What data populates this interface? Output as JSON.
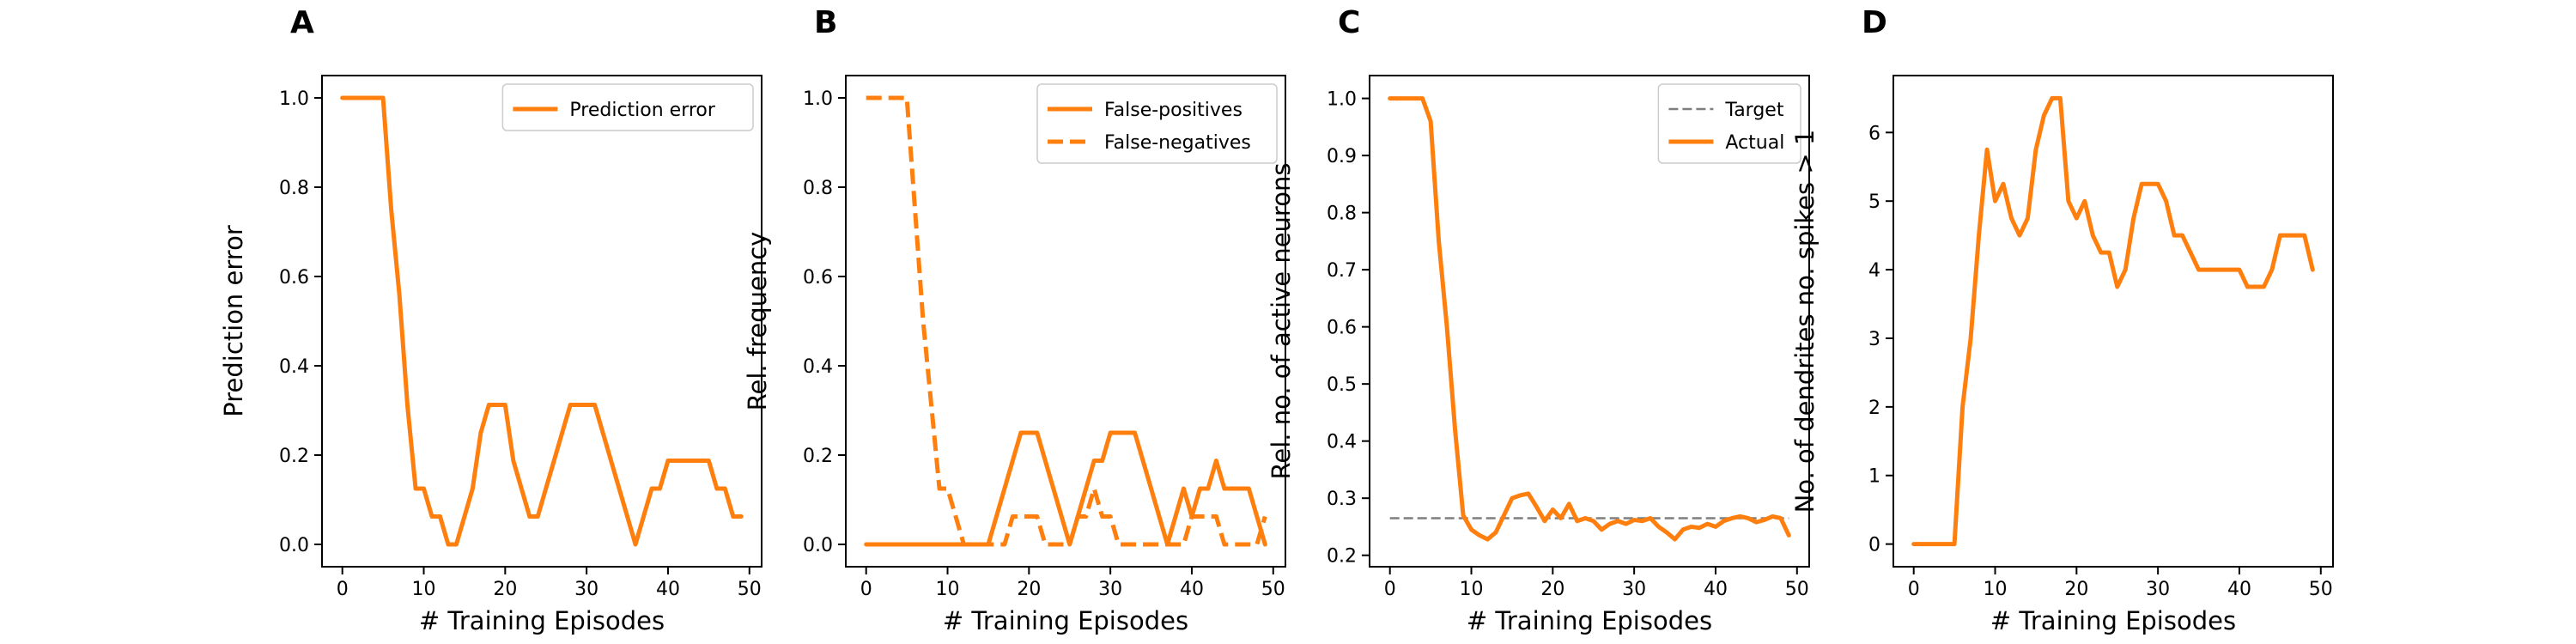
{
  "chart_data": [
    {
      "type": "line",
      "panel": "A",
      "xlabel": "# Training Episodes",
      "ylabel": "Prediction error",
      "xlim": [
        -2.5,
        51.5
      ],
      "ylim": [
        -0.05,
        1.05
      ],
      "xticks": [
        0,
        10,
        20,
        30,
        40,
        50
      ],
      "yticks": [
        0.0,
        0.2,
        0.4,
        0.6,
        0.8,
        1.0
      ],
      "ytick_decimals": 1,
      "legend_position": "upper-right",
      "series": [
        {
          "name": "Prediction error",
          "color": "#ff7f0e",
          "dash": "solid",
          "x": [
            0,
            1,
            2,
            3,
            4,
            5,
            6,
            7,
            8,
            9,
            10,
            11,
            12,
            13,
            14,
            15,
            16,
            17,
            18,
            19,
            20,
            21,
            22,
            23,
            24,
            25,
            26,
            27,
            28,
            29,
            30,
            31,
            32,
            33,
            34,
            35,
            36,
            37,
            38,
            39,
            40,
            41,
            42,
            43,
            44,
            45,
            46,
            47,
            48,
            49
          ],
          "y": [
            1.0,
            1.0,
            1.0,
            1.0,
            1.0,
            1.0,
            0.75,
            0.56,
            0.31,
            0.125,
            0.125,
            0.0625,
            0.0625,
            0.0,
            0.0,
            0.0625,
            0.125,
            0.25,
            0.3125,
            0.3125,
            0.3125,
            0.1875,
            0.125,
            0.0625,
            0.0625,
            0.125,
            0.1875,
            0.25,
            0.3125,
            0.3125,
            0.3125,
            0.3125,
            0.25,
            0.1875,
            0.125,
            0.0625,
            0.0,
            0.0625,
            0.125,
            0.125,
            0.1875,
            0.1875,
            0.1875,
            0.1875,
            0.1875,
            0.1875,
            0.125,
            0.125,
            0.0625,
            0.0625
          ]
        }
      ]
    },
    {
      "type": "line",
      "panel": "B",
      "xlabel": "# Training Episodes",
      "ylabel": "Rel. frequency",
      "xlim": [
        -2.5,
        51.5
      ],
      "ylim": [
        -0.05,
        1.05
      ],
      "xticks": [
        0,
        10,
        20,
        30,
        40,
        50
      ],
      "yticks": [
        0.0,
        0.2,
        0.4,
        0.6,
        0.8,
        1.0
      ],
      "ytick_decimals": 1,
      "legend_position": "upper-right",
      "series": [
        {
          "name": "False-positives",
          "color": "#ff7f0e",
          "dash": "solid",
          "x": [
            0,
            1,
            2,
            3,
            4,
            5,
            6,
            7,
            8,
            9,
            10,
            11,
            12,
            13,
            14,
            15,
            16,
            17,
            18,
            19,
            20,
            21,
            22,
            23,
            24,
            25,
            26,
            27,
            28,
            29,
            30,
            31,
            32,
            33,
            34,
            35,
            36,
            37,
            38,
            39,
            40,
            41,
            42,
            43,
            44,
            45,
            46,
            47,
            48,
            49
          ],
          "y": [
            0,
            0,
            0,
            0,
            0,
            0,
            0,
            0,
            0,
            0,
            0,
            0,
            0,
            0,
            0,
            0,
            0.0625,
            0.125,
            0.1875,
            0.25,
            0.25,
            0.25,
            0.1875,
            0.125,
            0.0625,
            0.0,
            0.0625,
            0.125,
            0.1875,
            0.1875,
            0.25,
            0.25,
            0.25,
            0.25,
            0.1875,
            0.125,
            0.0625,
            0.0,
            0.0625,
            0.125,
            0.0625,
            0.125,
            0.125,
            0.1875,
            0.125,
            0.125,
            0.125,
            0.125,
            0.0625,
            0.0
          ]
        },
        {
          "name": "False-negatives",
          "color": "#ff7f0e",
          "dash": "dashed",
          "x": [
            0,
            1,
            2,
            3,
            4,
            5,
            6,
            7,
            8,
            9,
            10,
            11,
            12,
            13,
            14,
            15,
            16,
            17,
            18,
            19,
            20,
            21,
            22,
            23,
            24,
            25,
            26,
            27,
            28,
            29,
            30,
            31,
            32,
            33,
            34,
            35,
            36,
            37,
            38,
            39,
            40,
            41,
            42,
            43,
            44,
            45,
            46,
            47,
            48,
            49
          ],
          "y": [
            1.0,
            1.0,
            1.0,
            1.0,
            1.0,
            1.0,
            0.75,
            0.5,
            0.3125,
            0.125,
            0.125,
            0.0625,
            0.0,
            0.0,
            0.0,
            0.0,
            0.0,
            0.0,
            0.0625,
            0.0625,
            0.0625,
            0.0625,
            0.0,
            0.0,
            0.0,
            0.0,
            0.0625,
            0.0625,
            0.125,
            0.0625,
            0.0625,
            0.0,
            0.0,
            0.0,
            0.0,
            0.0,
            0.0,
            0.0,
            0.0,
            0.0,
            0.0625,
            0.0625,
            0.0625,
            0.0625,
            0.0,
            0.0,
            0.0,
            0.0,
            0.0,
            0.0625
          ]
        }
      ]
    },
    {
      "type": "line",
      "panel": "C",
      "xlabel": "# Training Episodes",
      "ylabel": "Rel. no. of active neurons",
      "xlim": [
        -2.5,
        51.5
      ],
      "ylim": [
        0.18,
        1.04
      ],
      "xticks": [
        0,
        10,
        20,
        30,
        40,
        50
      ],
      "yticks": [
        0.2,
        0.3,
        0.4,
        0.5,
        0.6,
        0.7,
        0.8,
        0.9,
        1.0
      ],
      "ytick_decimals": 1,
      "legend_position": "upper-right",
      "series": [
        {
          "name": "Target",
          "color": "#7f7f7f",
          "dash": "dashed",
          "x": [
            0,
            49
          ],
          "y": [
            0.265,
            0.265
          ]
        },
        {
          "name": "Actual",
          "color": "#ff7f0e",
          "dash": "solid",
          "x": [
            0,
            1,
            2,
            3,
            4,
            5,
            6,
            7,
            8,
            9,
            10,
            11,
            12,
            13,
            14,
            15,
            16,
            17,
            18,
            19,
            20,
            21,
            22,
            23,
            24,
            25,
            26,
            27,
            28,
            29,
            30,
            31,
            32,
            33,
            34,
            35,
            36,
            37,
            38,
            39,
            40,
            41,
            42,
            43,
            44,
            45,
            46,
            47,
            48,
            49
          ],
          "y": [
            1.0,
            1.0,
            1.0,
            1.0,
            1.0,
            0.96,
            0.75,
            0.6,
            0.42,
            0.27,
            0.245,
            0.235,
            0.228,
            0.24,
            0.27,
            0.3,
            0.305,
            0.308,
            0.285,
            0.26,
            0.28,
            0.265,
            0.29,
            0.26,
            0.265,
            0.26,
            0.245,
            0.255,
            0.26,
            0.255,
            0.262,
            0.26,
            0.265,
            0.25,
            0.24,
            0.228,
            0.245,
            0.25,
            0.248,
            0.255,
            0.25,
            0.26,
            0.265,
            0.268,
            0.265,
            0.258,
            0.262,
            0.268,
            0.265,
            0.235
          ]
        }
      ]
    },
    {
      "type": "line",
      "panel": "D",
      "xlabel": "# Training Episodes",
      "ylabel": "No. of dendrites no. spikes > 1",
      "xlim": [
        -2.5,
        51.5
      ],
      "ylim": [
        -0.33,
        6.83
      ],
      "xticks": [
        0,
        10,
        20,
        30,
        40,
        50
      ],
      "yticks": [
        0,
        1,
        2,
        3,
        4,
        5,
        6
      ],
      "ytick_decimals": 0,
      "legend_position": "none",
      "series": [
        {
          "name": "",
          "color": "#ff7f0e",
          "dash": "solid",
          "x": [
            0,
            1,
            2,
            3,
            4,
            5,
            6,
            7,
            8,
            9,
            10,
            11,
            12,
            13,
            14,
            15,
            16,
            17,
            18,
            19,
            20,
            21,
            22,
            23,
            24,
            25,
            26,
            27,
            28,
            29,
            30,
            31,
            32,
            33,
            34,
            35,
            36,
            37,
            38,
            39,
            40,
            41,
            42,
            43,
            44,
            45,
            46,
            47,
            48,
            49
          ],
          "y": [
            0,
            0,
            0,
            0,
            0,
            0,
            2.0,
            3.0,
            4.5,
            5.75,
            5.0,
            5.25,
            4.75,
            4.5,
            4.75,
            5.75,
            6.25,
            6.5,
            6.5,
            5.0,
            4.75,
            5.0,
            4.5,
            4.25,
            4.25,
            3.75,
            4.0,
            4.75,
            5.25,
            5.25,
            5.25,
            5.0,
            4.5,
            4.5,
            4.25,
            4.0,
            4.0,
            4.0,
            4.0,
            4.0,
            4.0,
            3.75,
            3.75,
            3.75,
            4.0,
            4.5,
            4.5,
            4.5,
            4.5,
            4.0
          ]
        }
      ]
    }
  ]
}
